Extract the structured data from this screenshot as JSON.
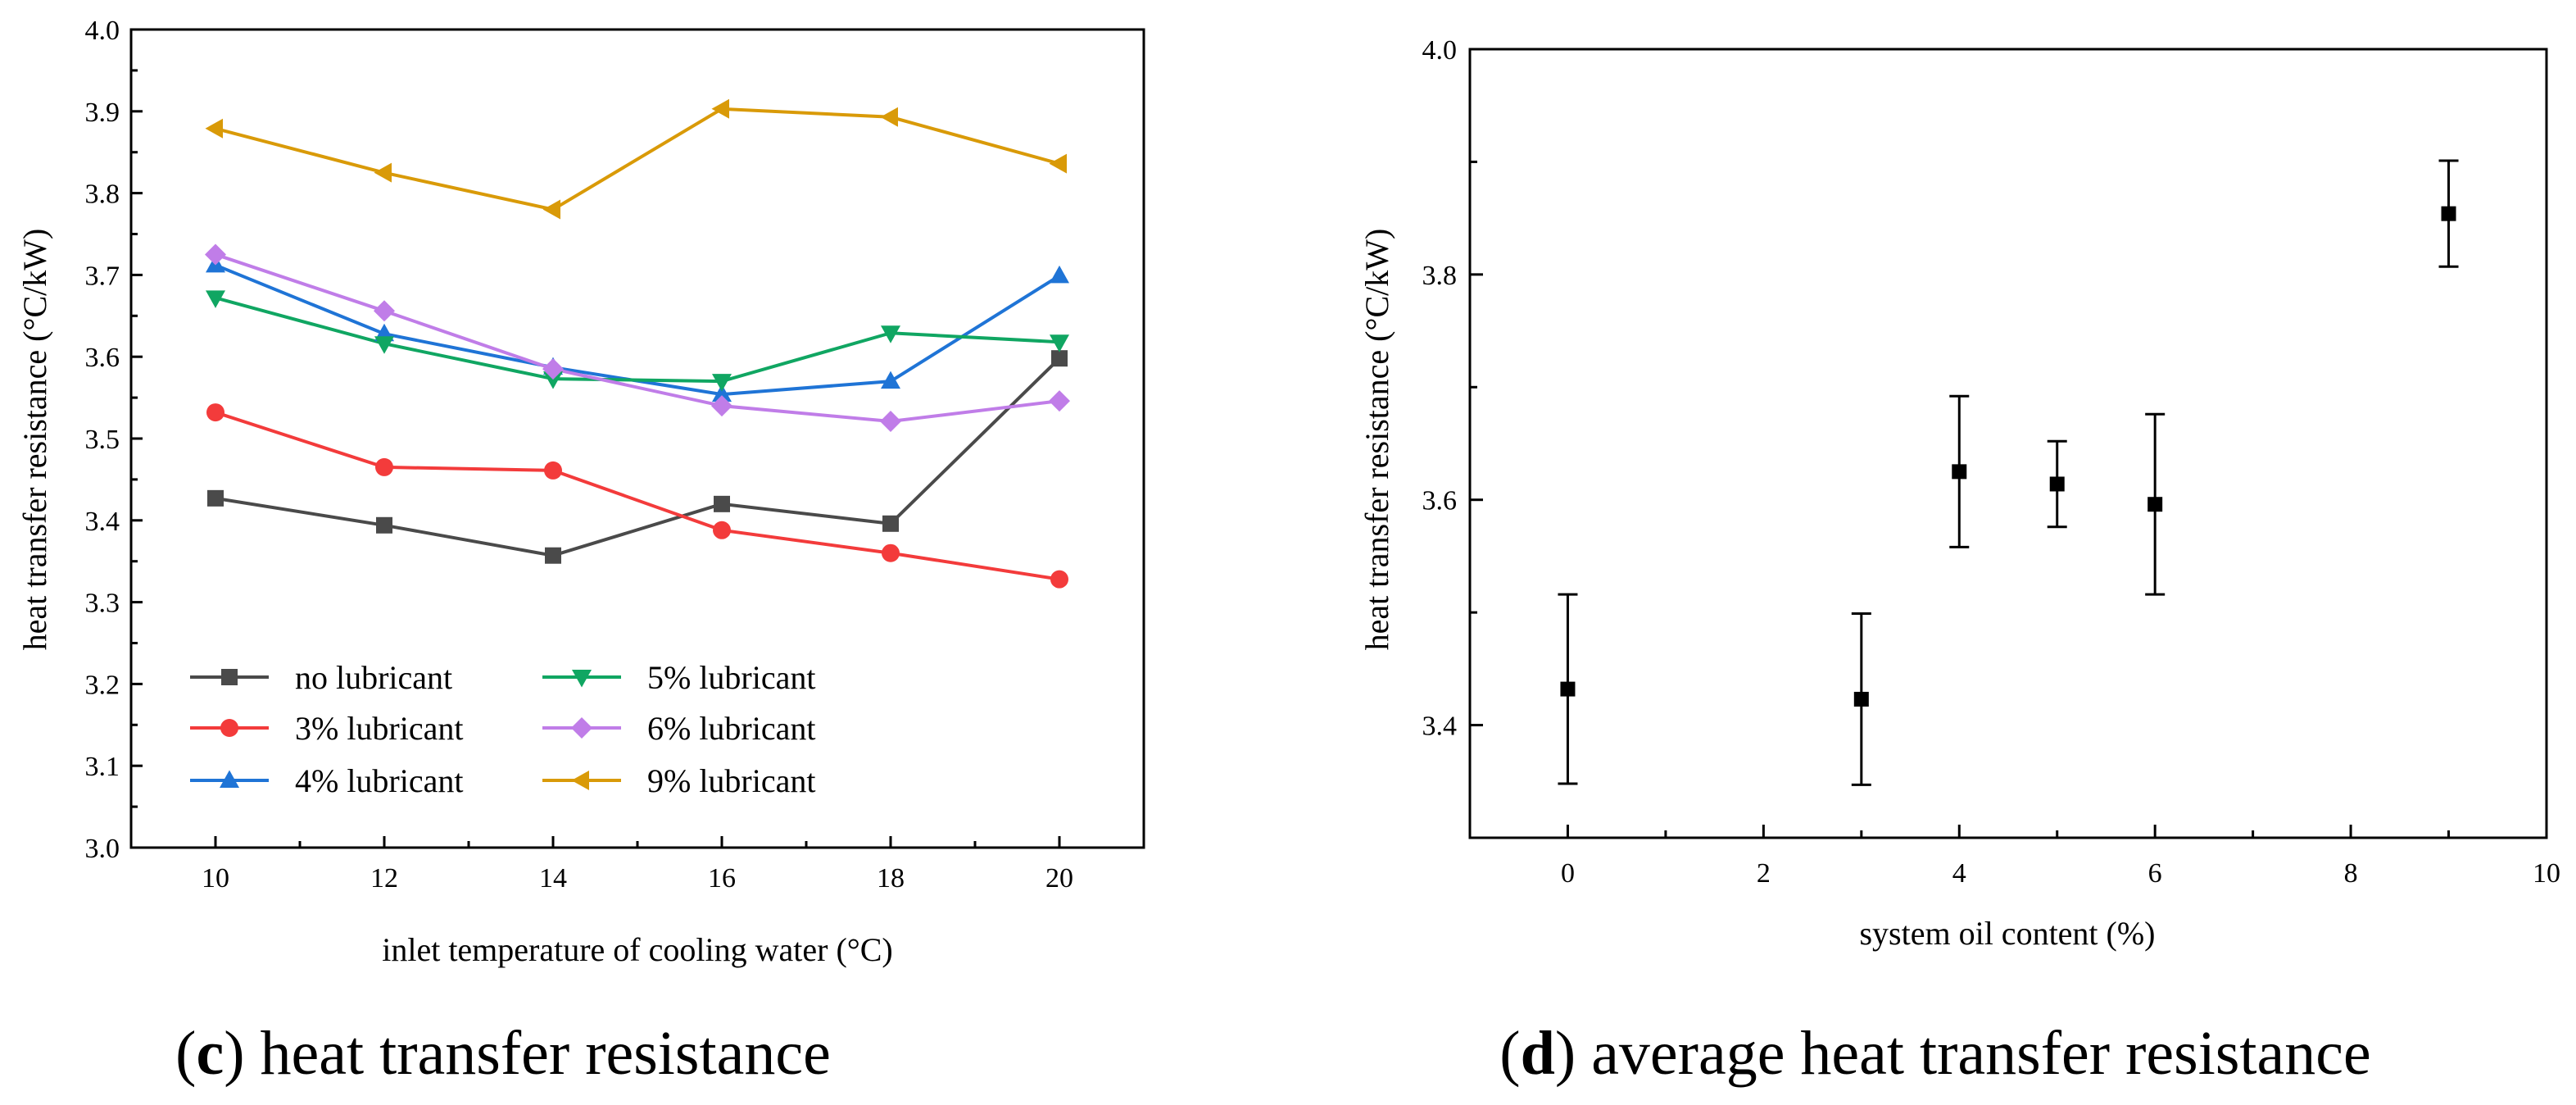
{
  "chart_data": [
    {
      "type": "line",
      "panel": "c",
      "xlabel": "inlet temperature of cooling water (°C)",
      "ylabel": "heat transfer resistance (°C/kW)",
      "x": [
        10,
        12,
        14,
        16,
        18,
        20
      ],
      "xlim": [
        9,
        21
      ],
      "ylim": [
        3.0,
        4.0
      ],
      "xticks": [
        "10",
        "12",
        "14",
        "16",
        "18",
        "20"
      ],
      "yticks": [
        "3.0",
        "3.1",
        "3.2",
        "3.3",
        "3.4",
        "3.5",
        "3.6",
        "3.7",
        "3.8",
        "3.9",
        "4.0"
      ],
      "legend_position": "bottom-left",
      "series": [
        {
          "name": "no lubricant",
          "color": "#4a4a4a",
          "marker": "square",
          "values": [
            3.427,
            3.394,
            3.357,
            3.42,
            3.396,
            3.598
          ]
        },
        {
          "name": "3% lubricant",
          "color": "#f33b3b",
          "marker": "circle",
          "values": [
            3.532,
            3.465,
            3.461,
            3.388,
            3.36,
            3.328
          ]
        },
        {
          "name": "4% lubricant",
          "color": "#1f74d6",
          "marker": "triangle-up",
          "values": [
            3.712,
            3.628,
            3.587,
            3.554,
            3.57,
            3.699
          ]
        },
        {
          "name": "5% lubricant",
          "color": "#10a662",
          "marker": "triangle-down",
          "values": [
            3.672,
            3.616,
            3.573,
            3.57,
            3.629,
            3.618
          ]
        },
        {
          "name": "6% lubricant",
          "color": "#c07de8",
          "marker": "diamond",
          "values": [
            3.725,
            3.656,
            3.585,
            3.54,
            3.521,
            3.546
          ]
        },
        {
          "name": "9% lubricant",
          "color": "#d99a08",
          "marker": "triangle-left",
          "values": [
            3.879,
            3.825,
            3.78,
            3.903,
            3.893,
            3.836
          ]
        }
      ],
      "caption": {
        "letter": "c",
        "text": " heat transfer resistance",
        "open": "(",
        "close": ")"
      }
    },
    {
      "type": "scatter",
      "panel": "d",
      "xlabel": "system oil content (%)",
      "ylabel": "heat transfer resistance (°C/kW)",
      "xlim": [
        -1,
        10
      ],
      "ylim": [
        3.3,
        4.0
      ],
      "xticks": [
        "0",
        "2",
        "4",
        "6",
        "8",
        "10"
      ],
      "yticks": [
        "3.4",
        "3.6",
        "3.8",
        "4.0"
      ],
      "series": [
        {
          "name": "average",
          "color": "#000000",
          "marker": "square",
          "x": [
            0,
            3,
            4,
            5,
            6,
            9
          ],
          "values": [
            3.432,
            3.423,
            3.625,
            3.614,
            3.596,
            3.854
          ],
          "error": [
            0.084,
            0.076,
            0.067,
            0.038,
            0.08,
            0.047
          ]
        }
      ],
      "caption": {
        "letter": "d",
        "text": " average heat transfer resistance",
        "open": "(",
        "close": ")"
      }
    }
  ]
}
